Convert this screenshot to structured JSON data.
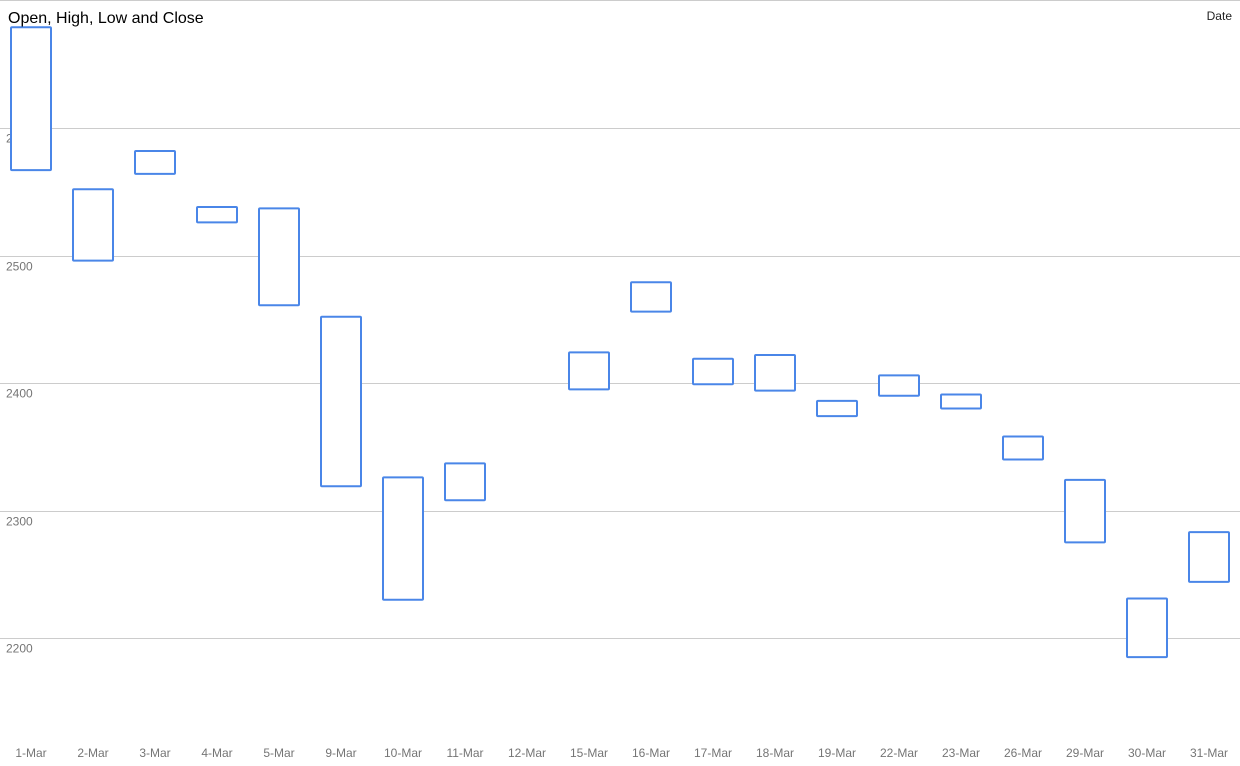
{
  "chart_data": {
    "type": "candlestick",
    "title": "Open, High, Low and Close",
    "legend": {
      "label": "Date",
      "position": "top-right"
    },
    "xlabel": "",
    "ylabel": "",
    "ylim": [
      2100,
      2680
    ],
    "yticks": [
      2200,
      2300,
      2400,
      2500,
      2600
    ],
    "grid": true,
    "color": "#4a86e8",
    "categories": [
      "1-Mar",
      "2-Mar",
      "3-Mar",
      "4-Mar",
      "5-Mar",
      "9-Mar",
      "10-Mar",
      "11-Mar",
      "12-Mar",
      "15-Mar",
      "16-Mar",
      "17-Mar",
      "18-Mar",
      "19-Mar",
      "22-Mar",
      "23-Mar",
      "26-Mar",
      "29-Mar",
      "30-Mar",
      "31-Mar"
    ],
    "boxes": [
      {
        "low": 2567,
        "high": 2679
      },
      {
        "low": 2496,
        "high": 2552
      },
      {
        "low": 2564,
        "high": 2582
      },
      {
        "low": 2526,
        "high": 2538
      },
      {
        "low": 2461,
        "high": 2537
      },
      {
        "low": 2319,
        "high": 2452
      },
      {
        "low": 2230,
        "high": 2326
      },
      {
        "low": 2308,
        "high": 2337
      },
      null,
      {
        "low": 2395,
        "high": 2424
      },
      {
        "low": 2456,
        "high": 2479
      },
      {
        "low": 2399,
        "high": 2419
      },
      {
        "low": 2394,
        "high": 2422
      },
      {
        "low": 2374,
        "high": 2386
      },
      {
        "low": 2390,
        "high": 2406
      },
      {
        "low": 2380,
        "high": 2391
      },
      {
        "low": 2340,
        "high": 2358
      },
      {
        "low": 2275,
        "high": 2324
      },
      {
        "low": 2185,
        "high": 2231
      },
      {
        "low": 2244,
        "high": 2283
      }
    ]
  }
}
